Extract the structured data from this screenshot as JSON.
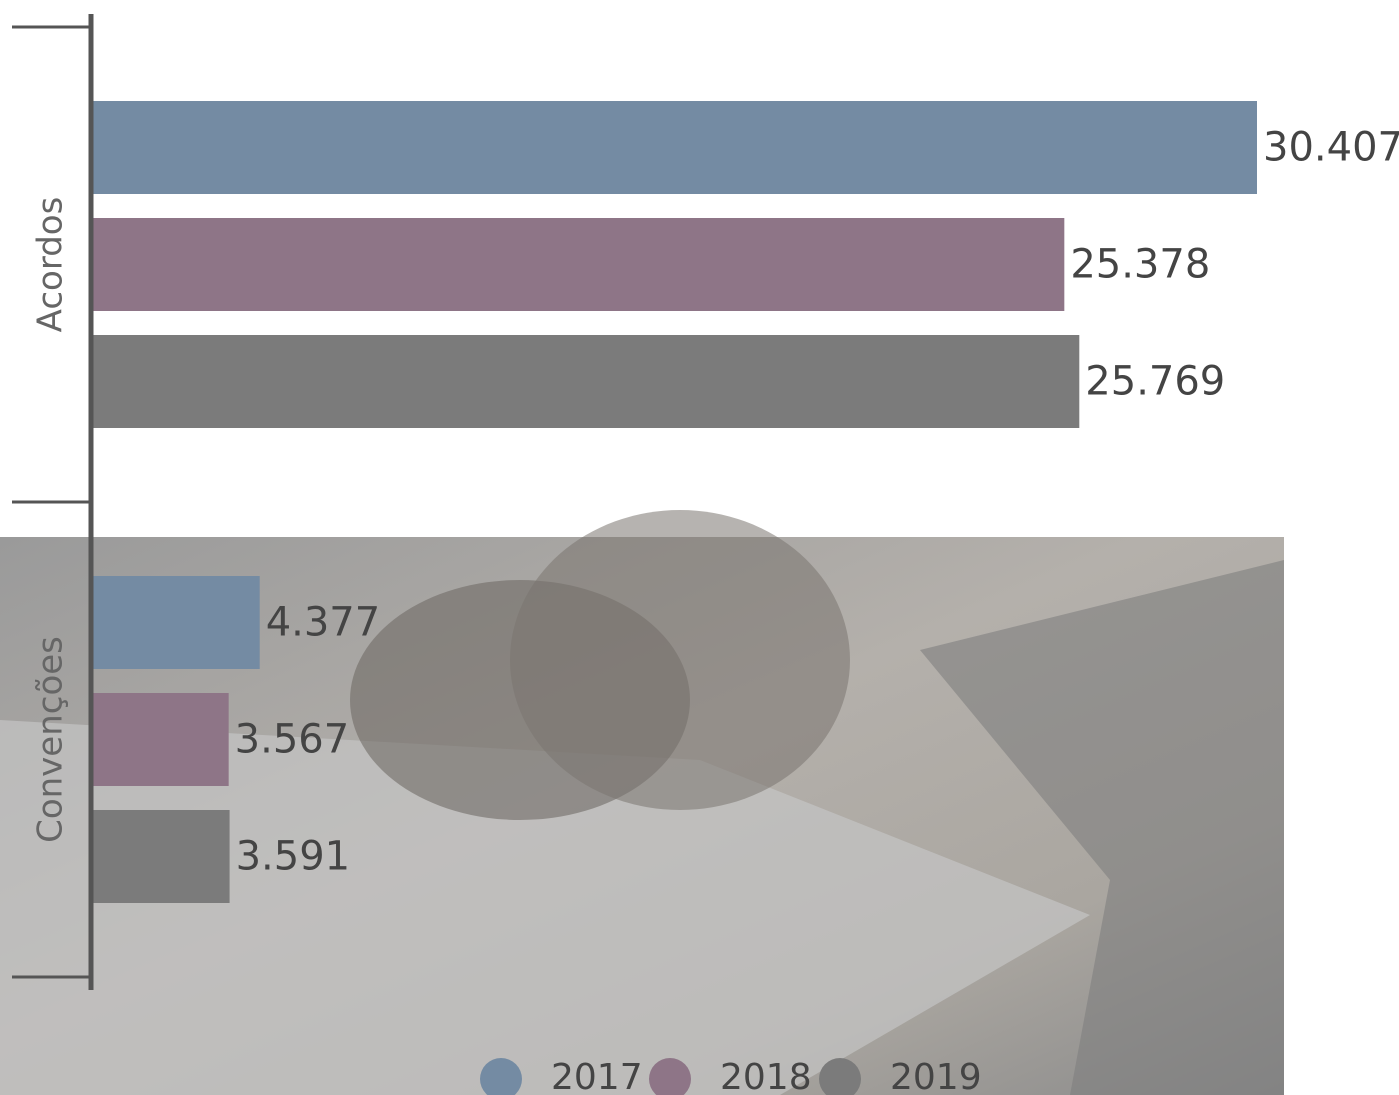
{
  "chart_data": {
    "type": "bar",
    "orientation": "horizontal",
    "categories": [
      "Acordos",
      "Convenções"
    ],
    "series": [
      {
        "name": "2017",
        "color": "#748ba3",
        "values": [
          30407,
          4377
        ],
        "value_labels": [
          "30.407",
          "4.377"
        ]
      },
      {
        "name": "2018",
        "color": "#8e7587",
        "values": [
          25378,
          3567
        ],
        "value_labels": [
          "25.378",
          "3.567"
        ]
      },
      {
        "name": "2019",
        "color": "#7b7b7b",
        "values": [
          25769,
          3591
        ],
        "value_labels": [
          "25.769",
          "3.591"
        ]
      }
    ],
    "legend": "bottom"
  }
}
